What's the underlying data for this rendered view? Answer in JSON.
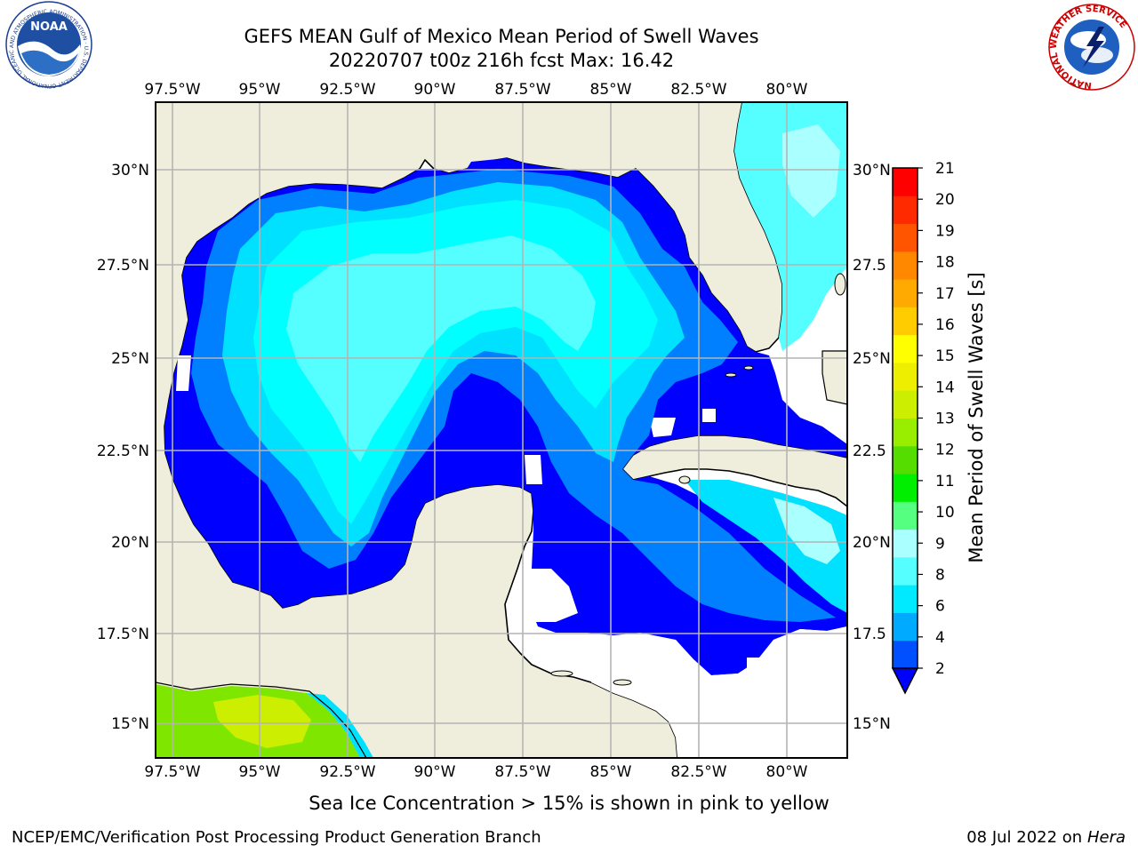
{
  "title": {
    "line1": "GEFS MEAN Gulf of Mexico Mean Period of Swell Waves",
    "line2": "20220707 t00z 216h fcst   Max: 16.42"
  },
  "map": {
    "lon_labels": [
      "97.5°W",
      "95°W",
      "92.5°W",
      "90°W",
      "87.5°W",
      "85°W",
      "82.5°W",
      "80°W"
    ],
    "lat_labels_left": [
      "30°N",
      "27.5°N",
      "25°N",
      "22.5°N",
      "20°N",
      "17.5°N",
      "15°N"
    ],
    "lat_labels_right": [
      "30°N",
      "27.5",
      "25°N",
      "22.5",
      "20°N",
      "17.5",
      "15°N"
    ],
    "grid": true,
    "colors": {
      "land": "#efeddc",
      "missing": "#ffffff",
      "grid": "#b4b4b4",
      "coast": "#000000"
    }
  },
  "colorbar": {
    "label": "Mean Period of Swell Waves [s]",
    "ticks": [
      "2",
      "4",
      "6",
      "8",
      "9",
      "10",
      "11",
      "12",
      "13",
      "14",
      "15",
      "16",
      "17",
      "18",
      "19",
      "20",
      "21"
    ],
    "colors": [
      "#0050ff",
      "#00aaff",
      "#00eaff",
      "#55ffff",
      "#aaffff",
      "#55ff80",
      "#00ee00",
      "#55dd00",
      "#99ee00",
      "#ccee00",
      "#eeee00",
      "#ffff00",
      "#ffcc00",
      "#ffaa00",
      "#ff8800",
      "#ff5500",
      "#ff2a00",
      "#ff0000"
    ],
    "under_color": "#0000ff",
    "extend": "min"
  },
  "field_colors": {
    "band_2_4": "#0000ff",
    "band_4_6": "#0080ff",
    "band_6_8": "#00e0ff",
    "band_8_9": "#00ffff",
    "band_9_10": "#55ffff",
    "band_10_11": "#aaffff",
    "band_12_14": "#7fe600",
    "band_14_15": "#ccee00"
  },
  "caption": "Sea Ice Concentration > 15% is shown in pink to yellow",
  "footer": {
    "left": "NCEP/EMC/Verification Post Processing Product Generation Branch",
    "right_date": "08 Jul 2022 on ",
    "right_host": "Hera"
  },
  "logos": {
    "noaa_text": "NOAA",
    "noaa_ring": "NATIONAL OCEANIC AND ATMOSPHERIC ADMINISTRATION · U.S. DEPARTMENT OF COMMERCE",
    "nws_ring": "NATIONAL WEATHER SERVICE"
  }
}
